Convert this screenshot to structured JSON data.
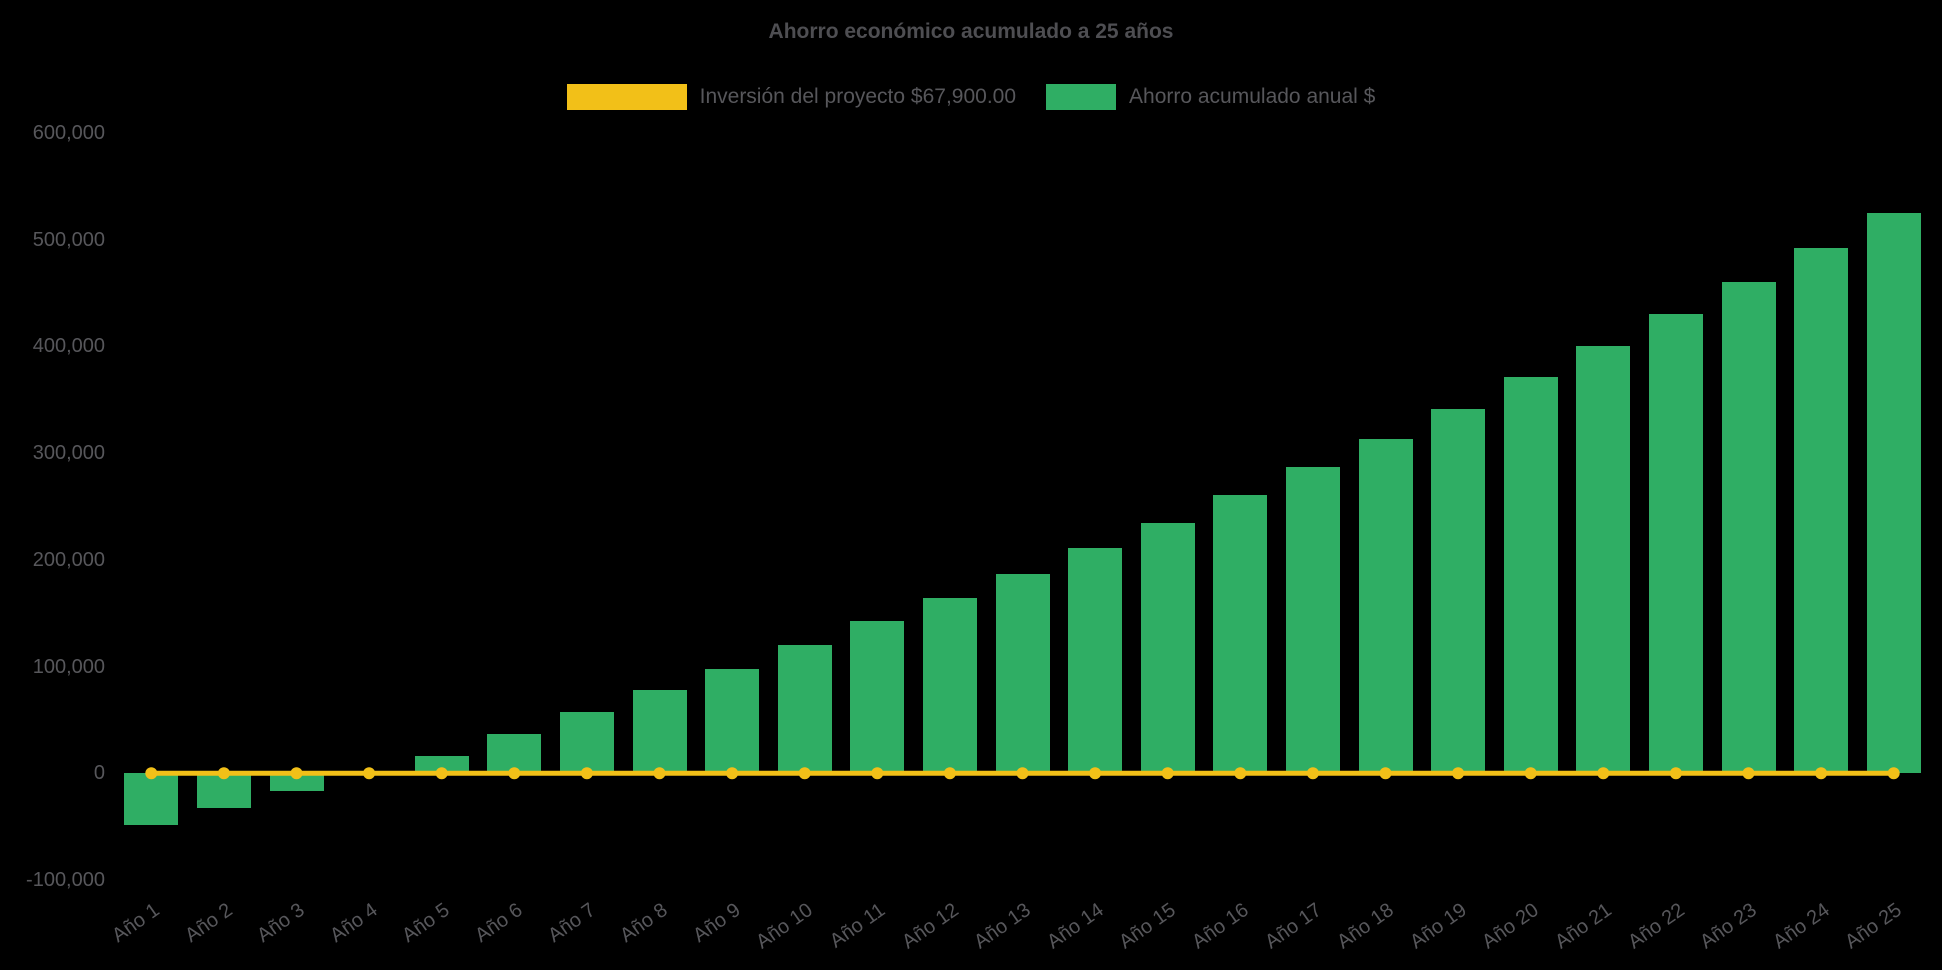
{
  "chart_data": {
    "type": "bar",
    "title": "Ahorro económico acumulado a 25 años",
    "categories": [
      "Año 1",
      "Año 2",
      "Año 3",
      "Año 4",
      "Año 5",
      "Año 6",
      "Año 7",
      "Año 8",
      "Año 9",
      "Año 10",
      "Año 11",
      "Año 12",
      "Año 13",
      "Año 14",
      "Año 15",
      "Año 16",
      "Año 17",
      "Año 18",
      "Año 19",
      "Año 20",
      "Año 21",
      "Año 22",
      "Año 23",
      "Año 24",
      "Año 25"
    ],
    "series": [
      {
        "name": "Inversión del proyecto $67,900.00",
        "type": "line",
        "color": "#f2c018",
        "values": [
          0,
          0,
          0,
          0,
          0,
          0,
          0,
          0,
          0,
          0,
          0,
          0,
          0,
          0,
          0,
          0,
          0,
          0,
          0,
          0,
          0,
          0,
          0,
          0,
          0
        ]
      },
      {
        "name": "Ahorro acumulado anual $",
        "type": "bar",
        "color": "#2fae64",
        "values": [
          -48000,
          -33000,
          -17000,
          2000,
          16000,
          37000,
          57000,
          78000,
          98000,
          120000,
          143000,
          164000,
          187000,
          211000,
          235000,
          261000,
          287000,
          313000,
          341000,
          371000,
          400000,
          430000,
          460000,
          492000,
          525000
        ]
      }
    ],
    "investment_value_label": "$67,900.00",
    "xlabel": "",
    "ylabel": "",
    "ylim": [
      -100000,
      600000
    ],
    "y_tick_step": 100000,
    "y_tick_labels": [
      "-100,000",
      "0",
      "100,000",
      "200,000",
      "300,000",
      "400,000",
      "500,000",
      "600,000"
    ],
    "grid": false,
    "legend_position": "top",
    "background_color": "#000000",
    "text_color": "#57575b"
  }
}
